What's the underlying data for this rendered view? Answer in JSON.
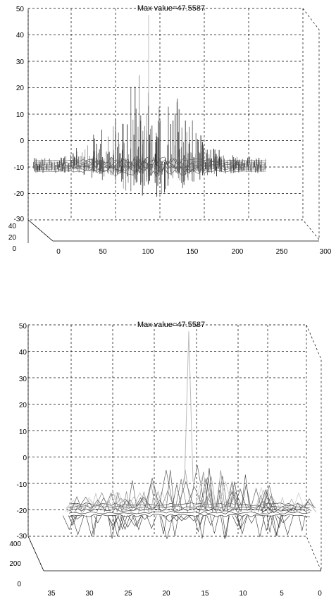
{
  "chart_data": [
    {
      "type": "surface",
      "title": "Max value=47.5587",
      "zlim": [
        -30,
        50
      ],
      "z_ticks": [
        "50",
        "40",
        "30",
        "20",
        "10",
        "0",
        "-10",
        "-20",
        "-30"
      ],
      "x_ticks": [
        "0",
        "50",
        "100",
        "150",
        "200",
        "250",
        "300"
      ],
      "y_ticks": [
        "40",
        "20",
        "0"
      ],
      "max_value": 47.5587,
      "grid": true,
      "colormap": "grayscale"
    },
    {
      "type": "surface",
      "title": "Max value=47.5587",
      "zlim": [
        -30,
        50
      ],
      "z_ticks": [
        "50",
        "40",
        "30",
        "20",
        "10",
        "0",
        "-10",
        "-20",
        "-30"
      ],
      "x_ticks": [
        "35",
        "30",
        "25",
        "20",
        "15",
        "10",
        "5",
        "0"
      ],
      "y_ticks": [
        "400",
        "200",
        "0"
      ],
      "max_value": 47.5587,
      "grid": true,
      "colormap": "grayscale-mesh"
    }
  ]
}
